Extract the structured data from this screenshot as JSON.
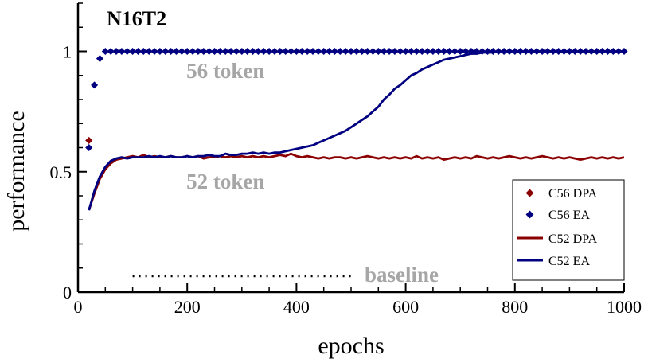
{
  "chart_data": {
    "type": "line",
    "title": "N16T2",
    "xlabel": "epochs",
    "ylabel": "performance",
    "xlim": [
      0,
      1000
    ],
    "ylim": [
      0,
      1.2
    ],
    "x_ticks": [
      0,
      200,
      400,
      600,
      800,
      1000
    ],
    "x_tick_labels": [
      "0",
      "200",
      "400",
      "600",
      "800",
      "1000"
    ],
    "y_ticks": [
      0,
      0.5,
      1
    ],
    "y_tick_labels": [
      "0",
      "0.5",
      "1"
    ],
    "x_minor_step": 50,
    "y_minor_step": 0.1,
    "grid": false,
    "legend_position": "bottom-right",
    "annotations": [
      {
        "text": "56 token",
        "x": 270,
        "y": 0.89
      },
      {
        "text": "52 token",
        "x": 270,
        "y": 0.43
      }
    ],
    "baseline": {
      "label": "baseline",
      "x": [
        100,
        500
      ],
      "y": 0.066
    },
    "series": [
      {
        "name": "C56 DPA",
        "style": "marker",
        "color": "#8b0000",
        "x": [
          20
        ],
        "y": [
          0.63
        ]
      },
      {
        "name": "C56 EA",
        "style": "marker",
        "color": "#000080",
        "x": [
          20,
          30,
          40,
          50,
          60,
          70,
          80,
          90,
          100,
          110,
          120,
          130,
          140,
          150,
          160,
          170,
          180,
          190,
          200,
          210,
          220,
          230,
          240,
          250,
          260,
          270,
          280,
          290,
          300,
          310,
          320,
          330,
          340,
          350,
          360,
          370,
          380,
          390,
          400,
          410,
          420,
          430,
          440,
          450,
          460,
          470,
          480,
          490,
          500,
          510,
          520,
          530,
          540,
          550,
          560,
          570,
          580,
          590,
          600,
          610,
          620,
          630,
          640,
          650,
          660,
          670,
          680,
          690,
          700,
          710,
          720,
          730,
          740,
          750,
          760,
          770,
          780,
          790,
          800,
          810,
          820,
          830,
          840,
          850,
          860,
          870,
          880,
          890,
          900,
          910,
          920,
          930,
          940,
          950,
          960,
          970,
          980,
          990,
          1000
        ],
        "y": [
          0.6,
          0.86,
          0.97,
          1,
          1,
          1,
          1,
          1,
          1,
          1,
          1,
          1,
          1,
          1,
          1,
          1,
          1,
          1,
          1,
          1,
          1,
          1,
          1,
          1,
          1,
          1,
          1,
          1,
          1,
          1,
          1,
          1,
          1,
          1,
          1,
          1,
          1,
          1,
          1,
          1,
          1,
          1,
          1,
          1,
          1,
          1,
          1,
          1,
          1,
          1,
          1,
          1,
          1,
          1,
          1,
          1,
          1,
          1,
          1,
          1,
          1,
          1,
          1,
          1,
          1,
          1,
          1,
          1,
          1,
          1,
          1,
          1,
          1,
          1,
          1,
          1,
          1,
          1,
          1,
          1,
          1,
          1,
          1,
          1,
          1,
          1,
          1,
          1,
          1,
          1,
          1,
          1,
          1,
          1,
          1,
          1,
          1,
          1,
          1
        ]
      },
      {
        "name": "C52 DPA",
        "style": "line",
        "color": "#8b0000",
        "x": [
          20,
          30,
          40,
          50,
          60,
          70,
          80,
          90,
          100,
          110,
          120,
          130,
          140,
          150,
          160,
          170,
          180,
          190,
          200,
          210,
          220,
          230,
          240,
          250,
          260,
          270,
          280,
          290,
          300,
          310,
          320,
          330,
          340,
          350,
          360,
          370,
          380,
          390,
          400,
          410,
          420,
          430,
          440,
          450,
          460,
          470,
          480,
          490,
          500,
          510,
          520,
          530,
          540,
          550,
          560,
          570,
          580,
          590,
          600,
          610,
          620,
          630,
          640,
          650,
          660,
          670,
          680,
          690,
          700,
          710,
          720,
          730,
          740,
          750,
          760,
          770,
          780,
          790,
          800,
          810,
          820,
          830,
          840,
          850,
          860,
          870,
          880,
          890,
          900,
          910,
          920,
          930,
          940,
          950,
          960,
          970,
          980,
          990,
          1000
        ],
        "y": [
          0.34,
          0.41,
          0.47,
          0.51,
          0.535,
          0.55,
          0.555,
          0.56,
          0.565,
          0.56,
          0.57,
          0.56,
          0.565,
          0.56,
          0.56,
          0.565,
          0.56,
          0.56,
          0.565,
          0.56,
          0.565,
          0.555,
          0.56,
          0.56,
          0.565,
          0.56,
          0.565,
          0.56,
          0.565,
          0.56,
          0.565,
          0.56,
          0.565,
          0.56,
          0.565,
          0.57,
          0.565,
          0.575,
          0.565,
          0.56,
          0.565,
          0.56,
          0.555,
          0.56,
          0.555,
          0.56,
          0.56,
          0.555,
          0.56,
          0.555,
          0.56,
          0.565,
          0.56,
          0.555,
          0.56,
          0.555,
          0.56,
          0.555,
          0.56,
          0.555,
          0.565,
          0.555,
          0.56,
          0.555,
          0.56,
          0.55,
          0.555,
          0.56,
          0.555,
          0.56,
          0.555,
          0.565,
          0.56,
          0.555,
          0.56,
          0.555,
          0.56,
          0.565,
          0.56,
          0.555,
          0.56,
          0.555,
          0.56,
          0.565,
          0.56,
          0.555,
          0.56,
          0.555,
          0.56,
          0.555,
          0.55,
          0.555,
          0.56,
          0.555,
          0.56,
          0.555,
          0.56,
          0.555,
          0.56
        ]
      },
      {
        "name": "C52 EA",
        "style": "line",
        "color": "#000080",
        "x": [
          20,
          30,
          40,
          50,
          60,
          70,
          80,
          90,
          100,
          110,
          120,
          130,
          140,
          150,
          160,
          170,
          180,
          190,
          200,
          210,
          220,
          230,
          240,
          250,
          260,
          270,
          280,
          290,
          300,
          310,
          320,
          330,
          340,
          350,
          360,
          370,
          380,
          390,
          400,
          410,
          420,
          430,
          440,
          450,
          460,
          470,
          480,
          490,
          500,
          510,
          520,
          530,
          540,
          550,
          560,
          570,
          580,
          590,
          600,
          610,
          620,
          630,
          640,
          650,
          660,
          670,
          680,
          690,
          700,
          710,
          720,
          730,
          740,
          750,
          760,
          770,
          780,
          790,
          800,
          810,
          820,
          830,
          840,
          850,
          860,
          870,
          880,
          890,
          900,
          910,
          920,
          930,
          940,
          950,
          960,
          970,
          980,
          990,
          1000
        ],
        "y": [
          0.34,
          0.42,
          0.48,
          0.52,
          0.545,
          0.555,
          0.56,
          0.555,
          0.56,
          0.56,
          0.56,
          0.565,
          0.56,
          0.565,
          0.56,
          0.565,
          0.56,
          0.56,
          0.565,
          0.56,
          0.565,
          0.565,
          0.57,
          0.565,
          0.565,
          0.575,
          0.57,
          0.57,
          0.575,
          0.575,
          0.58,
          0.575,
          0.58,
          0.575,
          0.58,
          0.58,
          0.585,
          0.59,
          0.595,
          0.6,
          0.605,
          0.61,
          0.62,
          0.63,
          0.64,
          0.65,
          0.66,
          0.67,
          0.685,
          0.7,
          0.715,
          0.73,
          0.75,
          0.77,
          0.8,
          0.82,
          0.845,
          0.86,
          0.88,
          0.9,
          0.91,
          0.925,
          0.935,
          0.945,
          0.955,
          0.965,
          0.97,
          0.975,
          0.98,
          0.985,
          0.99,
          0.99,
          0.995,
          0.995,
          0.995,
          1,
          1,
          1,
          1,
          1,
          1,
          1,
          1,
          1,
          1,
          1,
          1,
          1,
          1,
          1,
          1,
          1,
          1,
          1,
          1,
          1,
          1,
          1,
          1
        ]
      }
    ]
  }
}
